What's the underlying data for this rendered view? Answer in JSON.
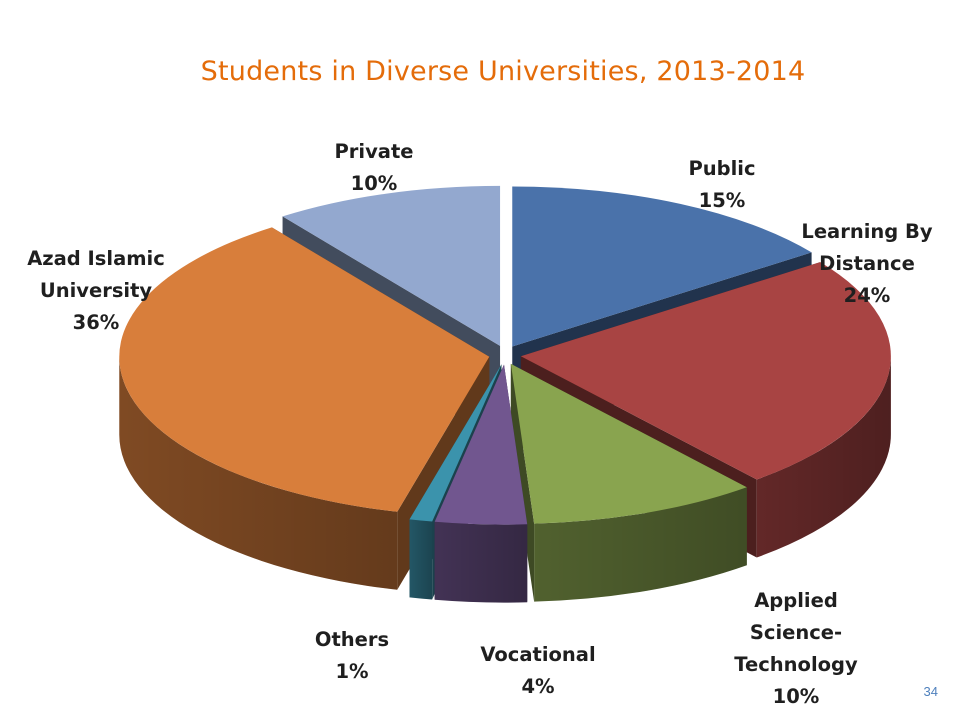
{
  "slide": {
    "page_number": "34"
  },
  "chart_data": {
    "type": "pie",
    "title": "Students in Diverse Universities, 2013-2014",
    "unit": "%",
    "slices": [
      {
        "label": "Public",
        "label_lines": [
          "Public"
        ],
        "value_text": "15%",
        "value": 15,
        "color": "#4a72aa"
      },
      {
        "label": "Learning By Distance",
        "label_lines": [
          "Learning By",
          "Distance"
        ],
        "value_text": "24%",
        "value": 24,
        "color": "#a84443"
      },
      {
        "label": "Applied Science-Technology",
        "label_lines": [
          "Applied",
          "Science-",
          "Technology"
        ],
        "value_text": "10%",
        "value": 10,
        "color": "#89a44f"
      },
      {
        "label": "Vocational",
        "label_lines": [
          "Vocational"
        ],
        "value_text": "4%",
        "value": 4,
        "color": "#71568f"
      },
      {
        "label": "Others",
        "label_lines": [
          "Others"
        ],
        "value_text": "1%",
        "value": 1,
        "color": "#3b93ac"
      },
      {
        "label": "Azad Islamic University",
        "label_lines": [
          "Azad Islamic",
          "University"
        ],
        "value_text": "36%",
        "value": 36,
        "color": "#d87e3b"
      },
      {
        "label": "Private",
        "label_lines": [
          "Private"
        ],
        "value_text": "10%",
        "value": 10,
        "color": "#93a8cf"
      }
    ],
    "style": "3d-exploded"
  }
}
